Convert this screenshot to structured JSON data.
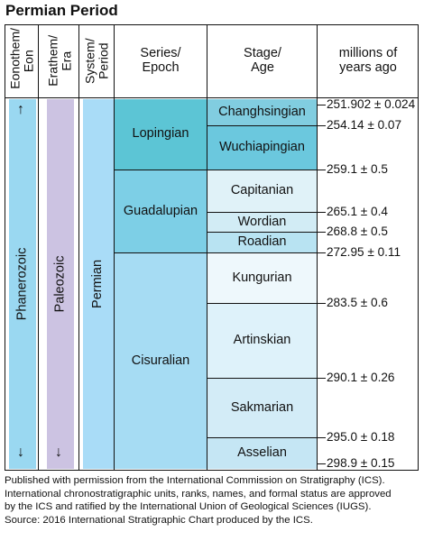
{
  "title": "Permian Period",
  "headers": {
    "eonothem": "Eonothem/ Eon",
    "erathem": "Erathem/ Era",
    "system": "System/ Period",
    "series": "Series/ Epoch",
    "stage": "Stage/ Age",
    "mya": "millions of years ago"
  },
  "eon": "Phanerozoic",
  "era": "Paleozoic",
  "period": "Permian",
  "series": [
    "Lopingian",
    "Guadalupian",
    "Cisuralian"
  ],
  "stages": [
    "Changhsingian",
    "Wuchiapingian",
    "Capitanian",
    "Wordian",
    "Roadian",
    "Kungurian",
    "Artinskian",
    "Sakmarian",
    "Asselian"
  ],
  "ages": [
    "251.902 ± 0.024",
    "254.14 ± 0.07",
    "259.1 ± 0.5",
    "265.1 ± 0.4",
    "268.8 ± 0.5",
    "272.95 ± 0.11",
    "283.5 ± 0.6",
    "290.1 ± 0.26",
    "295.0 ± 0.18",
    "298.9 ± 0.15"
  ],
  "arrows": {
    "up": "↑",
    "down": "↓"
  },
  "colors": {
    "eon": "#9ad8f1",
    "era": "#ccc3e2",
    "period": "#a9dcf7",
    "lopingian": "#5cc5d5",
    "guadalupian": "#7dcfe6",
    "cisuralian": "#a6dcf3",
    "changhsingian": "#81cde0",
    "wuchiapingian": "#6bc8de",
    "capitanian": "#e0f2f8",
    "wordian": "#d2ecf5",
    "roadian": "#b8e3f2",
    "kungurian": "#eef8fc",
    "artinskian": "#def2fa",
    "sakmarian": "#d3ecf7",
    "asselian": "#c5e6f4"
  },
  "footnote": {
    "line1": "Published with permission from the International Commission on Stratigraphy (ICS).",
    "line2": "International chronostratigraphic units, ranks, names, and formal status are approved",
    "line3": "by the ICS and ratified by the International Union of Geological Sciences (IUGS).",
    "line4": "Source: 2016 International Stratigraphic Chart produced by the ICS."
  }
}
